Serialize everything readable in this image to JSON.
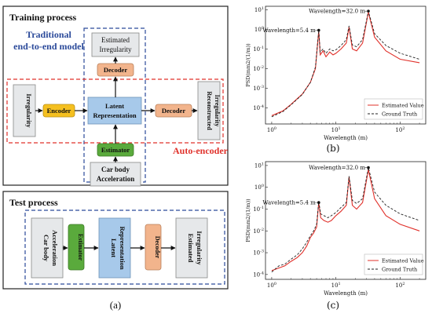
{
  "left": {
    "training_title": "Training process",
    "traditional_label_line1": "Traditional",
    "traditional_label_line2": "end-to-end model",
    "estimated_irregularity": [
      "Estimated",
      "Irregularity"
    ],
    "decoder": "Decoder",
    "irregularity": "Irregularity",
    "encoder": "Encoder",
    "latent_representation": [
      "Latent",
      "Representation"
    ],
    "reconstructed_irregularity": [
      "Reconstructed",
      "Irregularity"
    ],
    "estimator": "Estimator",
    "car_body_acceleration": [
      "Car body",
      "Acceleration"
    ],
    "auto_encoder_label": "Auto-encoder",
    "test_title": "Test process",
    "test_car_body": [
      "Car body",
      "Acceleration"
    ],
    "test_estimator": "Estimator",
    "test_latent": [
      "Latent",
      "Representation"
    ],
    "test_decoder": "Decoder",
    "test_estimated": [
      "Estimated",
      "Irregularity"
    ],
    "caption": "(a)"
  },
  "colors": {
    "estimated_line": "#e0302a",
    "ground_truth_line": "#222222",
    "encoder_fill": "#f5c020",
    "decoder_fill": "#f2b48c",
    "latent_fill": "#a7c9ea",
    "estimator_fill": "#5aaa3c",
    "gray_fill": "#e6e8ea",
    "traditional_text": "#2b4a9a",
    "autoencoder_text": "#e0302a"
  },
  "chart_data": [
    {
      "type": "line",
      "panel_caption": "(b)",
      "xlabel": "Wavelength (m)",
      "ylabel": "PSD(mm2/(1/m))",
      "xscale": "log",
      "yscale": "log",
      "xlim": [
        0.8,
        250
      ],
      "ylim": [
        1.5e-05,
        15
      ],
      "xticks": [
        "10^0",
        "10^1",
        "10^2"
      ],
      "yticks": [
        "10^-4",
        "10^-3",
        "10^-2",
        "10^-1",
        "10^0",
        "10^1"
      ],
      "annotations": [
        {
          "text": "Wavelength=32.0 m",
          "x": 32.0,
          "y": 8.5
        },
        {
          "text": "Wavelength=5.4 m",
          "x": 5.4,
          "y": 0.9
        }
      ],
      "legend": {
        "placement": "bottom-right",
        "entries": [
          "Estimated Value",
          "Ground Truth"
        ]
      },
      "series": [
        {
          "name": "Estimated Value",
          "style": "solid",
          "x": [
            1.0,
            1.5,
            2.0,
            3.0,
            4.0,
            4.8,
            5.4,
            5.7,
            6.3,
            7.0,
            8.0,
            9.0,
            10.0,
            12.0,
            14.5,
            16.0,
            18.0,
            21.0,
            26.0,
            32.0,
            40.0,
            60.0,
            100.0,
            200.0
          ],
          "y": [
            4e-05,
            7e-05,
            0.00015,
            0.0005,
            0.002,
            0.01,
            0.85,
            0.05,
            0.08,
            0.04,
            0.07,
            0.05,
            0.06,
            0.1,
            0.2,
            1.3,
            0.1,
            0.08,
            0.2,
            7.5,
            0.4,
            0.08,
            0.03,
            0.02
          ]
        },
        {
          "name": "Ground Truth",
          "style": "dashed",
          "x": [
            1.0,
            1.5,
            2.0,
            3.0,
            4.0,
            4.8,
            5.4,
            5.7,
            6.3,
            7.0,
            8.0,
            9.0,
            10.0,
            12.0,
            14.5,
            16.0,
            18.0,
            21.0,
            26.0,
            32.0,
            40.0,
            60.0,
            100.0,
            200.0
          ],
          "y": [
            3.5e-05,
            6.5e-05,
            0.00014,
            0.00048,
            0.002,
            0.012,
            0.9,
            0.07,
            0.1,
            0.06,
            0.1,
            0.08,
            0.09,
            0.15,
            0.3,
            1.5,
            0.16,
            0.13,
            0.3,
            8.5,
            0.6,
            0.15,
            0.06,
            0.03
          ]
        }
      ]
    },
    {
      "type": "line",
      "panel_caption": "(c)",
      "xlabel": "Wavelength (m)",
      "ylabel": "PSD(mm2/(1/m))",
      "xscale": "log",
      "yscale": "log",
      "xlim": [
        0.8,
        250
      ],
      "ylim": [
        6e-05,
        15
      ],
      "xticks": [
        "10^0",
        "10^1",
        "10^2"
      ],
      "yticks": [
        "10^-4",
        "10^-3",
        "10^-2",
        "10^-1",
        "10^0",
        "10^1"
      ],
      "annotations": [
        {
          "text": "Wavelength=32.0 m",
          "x": 32.0,
          "y": 8.0
        },
        {
          "text": "Wavelength=5.4 m",
          "x": 5.4,
          "y": 0.2
        }
      ],
      "legend": {
        "placement": "bottom-right",
        "entries": [
          "Estimated Value",
          "Ground Truth"
        ]
      },
      "series": [
        {
          "name": "Estimated Value",
          "style": "solid",
          "x": [
            1.0,
            1.3,
            1.6,
            2.0,
            2.5,
            3.0,
            3.5,
            4.0,
            4.5,
            5.0,
            5.4,
            5.8,
            6.5,
            7.5,
            8.5,
            10.0,
            12.0,
            14.5,
            16.0,
            18.0,
            21.0,
            26.0,
            32.0,
            40.0,
            60.0,
            100.0,
            200.0
          ],
          "y": [
            0.00015,
            0.0002,
            0.00025,
            0.0004,
            0.0006,
            0.001,
            0.002,
            0.005,
            0.008,
            0.015,
            0.2,
            0.04,
            0.03,
            0.025,
            0.03,
            0.05,
            0.08,
            0.15,
            3.0,
            0.15,
            0.1,
            0.2,
            6.5,
            0.3,
            0.05,
            0.02,
            0.01
          ]
        },
        {
          "name": "Ground Truth",
          "style": "dashed",
          "x": [
            1.0,
            1.3,
            1.6,
            2.0,
            2.5,
            3.0,
            3.5,
            4.0,
            4.5,
            5.0,
            5.4,
            5.8,
            6.5,
            7.5,
            8.5,
            10.0,
            12.0,
            14.5,
            16.0,
            18.0,
            21.0,
            26.0,
            32.0,
            40.0,
            60.0,
            100.0,
            200.0
          ],
          "y": [
            0.00013,
            0.00025,
            0.0003,
            0.0005,
            0.0008,
            0.0015,
            0.003,
            0.006,
            0.01,
            0.02,
            0.22,
            0.06,
            0.05,
            0.04,
            0.05,
            0.07,
            0.12,
            0.2,
            3.2,
            0.25,
            0.18,
            0.3,
            8.0,
            0.6,
            0.15,
            0.06,
            0.03
          ]
        }
      ]
    }
  ]
}
